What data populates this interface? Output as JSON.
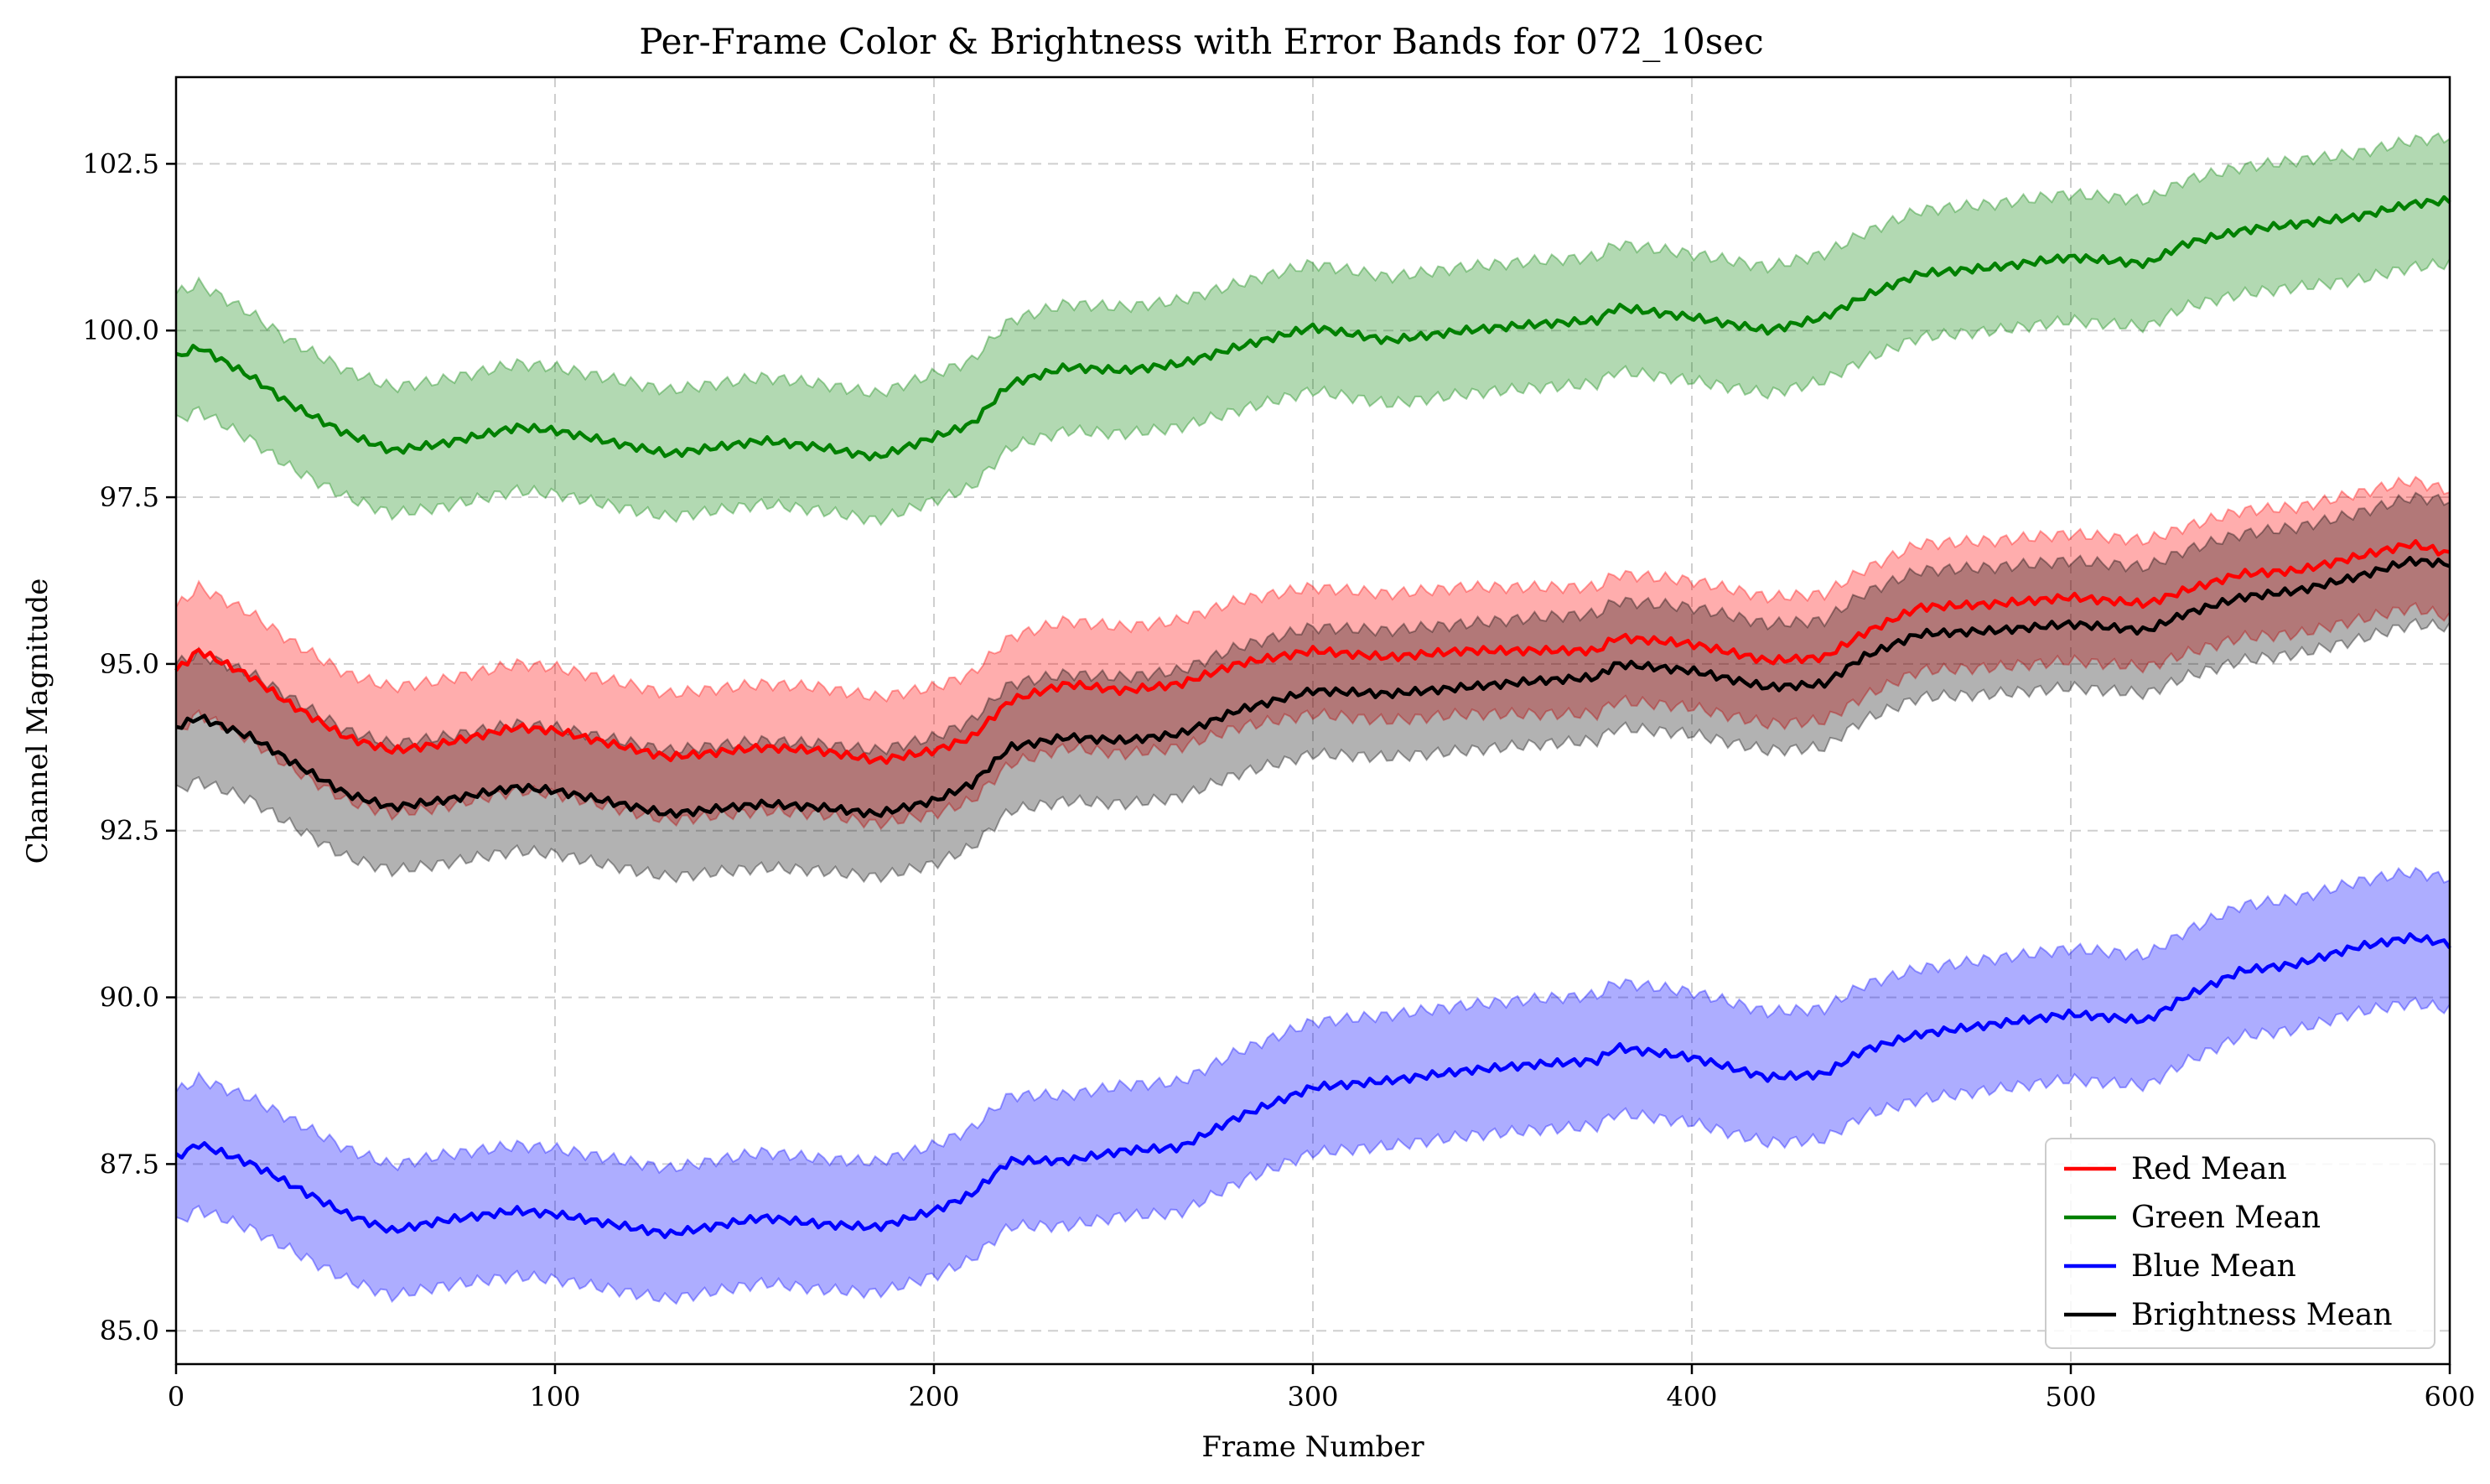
{
  "chart_data": {
    "type": "line",
    "title": "Per-Frame Color & Brightness with Error Bands for 072_10sec",
    "xlabel": "Frame Number",
    "ylabel": "Channel Magnitude",
    "xlim": [
      0,
      600
    ],
    "ylim": [
      84.5,
      103.8
    ],
    "xticks": [
      0,
      100,
      200,
      300,
      400,
      500,
      600
    ],
    "yticks": [
      85.0,
      87.5,
      90.0,
      92.5,
      95.0,
      97.5,
      100.0,
      102.5
    ],
    "xtick_labels": [
      "0",
      "100",
      "200",
      "300",
      "400",
      "500",
      "600"
    ],
    "ytick_labels": [
      "85.0",
      "87.5",
      "90.0",
      "92.5",
      "95.0",
      "97.5",
      "100.0",
      "102.5"
    ],
    "grid": true,
    "legend_position": "lower-right",
    "x": [
      0,
      6,
      20,
      30,
      45,
      57,
      70,
      90,
      100,
      130,
      155,
      170,
      185,
      200,
      210,
      220,
      235,
      250,
      265,
      280,
      300,
      320,
      340,
      360,
      375,
      380,
      400,
      420,
      435,
      445,
      460,
      480,
      500,
      520,
      530,
      545,
      560,
      575,
      590,
      600
    ],
    "series": [
      {
        "name": "Red Mean",
        "color": "#ff0000",
        "band_color": "#ff0000",
        "band_halfwidth": 0.95,
        "values": [
          94.9,
          95.2,
          94.8,
          94.4,
          93.9,
          93.7,
          93.8,
          94.05,
          94.0,
          93.6,
          93.75,
          93.7,
          93.55,
          93.7,
          93.9,
          94.45,
          94.7,
          94.6,
          94.7,
          95.0,
          95.2,
          95.1,
          95.2,
          95.2,
          95.2,
          95.4,
          95.3,
          95.05,
          95.1,
          95.45,
          95.85,
          95.9,
          96.0,
          95.9,
          96.1,
          96.35,
          96.4,
          96.6,
          96.8,
          96.65
        ]
      },
      {
        "name": "Green Mean",
        "color": "#008000",
        "band_color": "#008000",
        "band_halfwidth": 0.95,
        "values": [
          99.6,
          99.75,
          99.3,
          98.9,
          98.45,
          98.2,
          98.3,
          98.55,
          98.5,
          98.15,
          98.35,
          98.25,
          98.1,
          98.4,
          98.6,
          99.2,
          99.45,
          99.4,
          99.5,
          99.75,
          100.05,
          99.85,
          100.0,
          100.1,
          100.15,
          100.35,
          100.2,
          100.0,
          100.2,
          100.5,
          100.85,
          100.95,
          101.1,
          101.0,
          101.3,
          101.5,
          101.6,
          101.7,
          101.9,
          101.95
        ]
      },
      {
        "name": "Blue Mean",
        "color": "#0000ff",
        "band_color": "#0000ff",
        "band_halfwidth": 0.98,
        "values": [
          87.6,
          87.8,
          87.5,
          87.2,
          86.75,
          86.5,
          86.65,
          86.8,
          86.75,
          86.45,
          86.7,
          86.6,
          86.55,
          86.8,
          87.05,
          87.55,
          87.55,
          87.7,
          87.75,
          88.2,
          88.65,
          88.75,
          88.9,
          89.0,
          89.05,
          89.25,
          89.1,
          88.8,
          88.85,
          89.2,
          89.45,
          89.6,
          89.75,
          89.65,
          90.0,
          90.4,
          90.5,
          90.75,
          90.9,
          90.8
        ]
      },
      {
        "name": "Brightness Mean",
        "color": "#000000",
        "band_color": "#000000",
        "band_halfwidth": 0.95,
        "values": [
          94.05,
          94.2,
          93.9,
          93.55,
          93.05,
          92.85,
          92.95,
          93.15,
          93.1,
          92.75,
          92.9,
          92.85,
          92.75,
          92.95,
          93.2,
          93.75,
          93.9,
          93.85,
          93.95,
          94.3,
          94.6,
          94.55,
          94.65,
          94.75,
          94.8,
          95.0,
          94.9,
          94.65,
          94.7,
          95.1,
          95.45,
          95.5,
          95.6,
          95.5,
          95.75,
          96.0,
          96.1,
          96.3,
          96.55,
          96.5
        ]
      }
    ]
  }
}
